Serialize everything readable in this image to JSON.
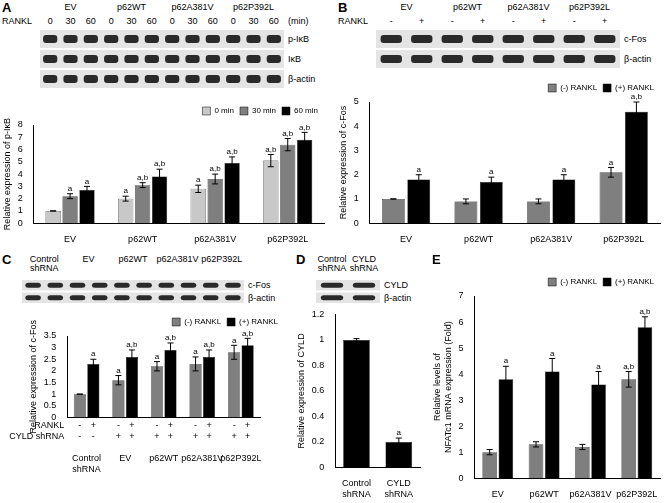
{
  "chart_data": [
    {
      "panel": "A",
      "type": "bar",
      "blot": {
        "groups": [
          "EV",
          "p62WT",
          "p62A381V",
          "p62P392L"
        ],
        "header": "RANKL",
        "lane_labels": [
          "0",
          "30",
          "60",
          "0",
          "30",
          "60",
          "0",
          "30",
          "60",
          "0",
          "30",
          "60"
        ],
        "unit": "(min)",
        "rows": [
          "p-IκB",
          "IκB",
          "β-actin"
        ]
      },
      "y_label": "Relative expression of p-IκB",
      "categories": [
        "EV",
        "p62WT",
        "p62A381V",
        "p62P392L"
      ],
      "series": [
        {
          "name": "0 min",
          "color": "#c8c8c8",
          "values": [
            1.0,
            2.0,
            2.8,
            5.1
          ],
          "errors": [
            0.0,
            0.2,
            0.3,
            0.5
          ],
          "significance": [
            null,
            "a",
            "a",
            "a,b"
          ]
        },
        {
          "name": "30 min",
          "color": "#7f7f7f",
          "values": [
            2.2,
            3.1,
            3.6,
            6.4
          ],
          "errors": [
            0.2,
            0.2,
            0.4,
            0.5
          ],
          "significance": [
            "a",
            "a,b",
            "a,b",
            "a,b"
          ]
        },
        {
          "name": "60 min",
          "color": "#000000",
          "values": [
            2.7,
            3.8,
            4.9,
            6.8
          ],
          "errors": [
            0.3,
            0.6,
            0.5,
            0.6
          ],
          "significance": [
            "a",
            "a,b",
            "a,b",
            "a,b"
          ]
        }
      ],
      "ylim": [
        0,
        8
      ],
      "yticks": [
        0,
        1,
        2,
        3,
        4,
        5,
        6,
        7,
        8
      ],
      "grid": false,
      "legend": "top"
    },
    {
      "panel": "B",
      "type": "bar",
      "blot": {
        "groups": [
          "EV",
          "p62WT",
          "p62A381V",
          "p62P392L"
        ],
        "header": "RANKL",
        "lane_labels": [
          "-",
          "+",
          "-",
          "+",
          "-",
          "+",
          "-",
          "+"
        ],
        "rows": [
          "c-Fos",
          "β-actin"
        ]
      },
      "y_label": "Relative expression of c-Fos",
      "categories": [
        "EV",
        "p62WT",
        "p62A381V",
        "p62P392L"
      ],
      "series": [
        {
          "name": "(-) RANKL",
          "color": "#7f7f7f",
          "values": [
            1.0,
            0.9,
            0.9,
            2.1
          ],
          "errors": [
            0.0,
            0.1,
            0.1,
            0.2
          ],
          "significance": [
            null,
            null,
            null,
            "a"
          ]
        },
        {
          "name": "(+) RANKL",
          "color": "#000000",
          "values": [
            1.8,
            1.7,
            1.8,
            4.6
          ],
          "errors": [
            0.2,
            0.2,
            0.2,
            0.4
          ],
          "significance": [
            "a",
            "a",
            "a",
            "a,b"
          ]
        }
      ],
      "ylim": [
        0,
        5
      ],
      "yticks": [
        0,
        1,
        2,
        3,
        4,
        5
      ],
      "grid": false,
      "legend": "top"
    },
    {
      "panel": "C",
      "type": "bar",
      "blot": {
        "groups": [
          "Control shRNA",
          "EV",
          "p62WT",
          "p62A381V",
          "p62P392L"
        ],
        "rows": [
          "c-Fos",
          "β-actin"
        ]
      },
      "y_label": "Relative expression of c-Fos",
      "categories": [
        "Control shRNA",
        "EV",
        "p62WT",
        "p62A381V",
        "p62P392L"
      ],
      "condition_rows": [
        {
          "label": "RANKL",
          "marks": [
            "-",
            "+",
            "-",
            "+",
            "-",
            "+",
            "-",
            "+",
            "-",
            "+"
          ]
        },
        {
          "label": "CYLD shRNA",
          "marks": [
            "-",
            "-",
            "+",
            "+",
            "+",
            "+",
            "+",
            "+",
            "+",
            "+"
          ]
        }
      ],
      "series": [
        {
          "name": "(-) RANKL",
          "color": "#7f7f7f",
          "values": [
            1.0,
            1.6,
            2.2,
            2.3,
            2.8
          ],
          "errors": [
            0.0,
            0.2,
            0.2,
            0.3,
            0.3
          ],
          "significance": [
            null,
            "a",
            "a",
            "a",
            "a"
          ]
        },
        {
          "name": "(+) RANKL",
          "color": "#000000",
          "values": [
            2.3,
            2.6,
            2.9,
            2.6,
            3.1
          ],
          "errors": [
            0.2,
            0.3,
            0.3,
            0.3,
            0.3
          ],
          "significance": [
            "a",
            "a,b",
            "a,b",
            "a,b",
            "a,b"
          ]
        }
      ],
      "ylim": [
        0,
        3.5
      ],
      "yticks": [
        0,
        0.5,
        1,
        1.5,
        2,
        2.5,
        3,
        3.5
      ],
      "grid": false,
      "legend": "top"
    },
    {
      "panel": "D",
      "type": "bar",
      "blot": {
        "groups": [
          "Control shRNA",
          "CYLD shRNA"
        ],
        "rows": [
          "CYLD",
          "β-actin"
        ]
      },
      "y_label": "Relative expression of CYLD",
      "categories": [
        "Control shRNA",
        "CYLD shRNA"
      ],
      "values": [
        1.0,
        0.2
      ],
      "errors": [
        0.01,
        0.03
      ],
      "significance": [
        null,
        "a"
      ],
      "color": "#000000",
      "ylim": [
        0,
        1.2
      ],
      "yticks": [
        0,
        0.2,
        0.4,
        0.6,
        0.8,
        1,
        1.2
      ],
      "grid": false
    },
    {
      "panel": "E",
      "type": "bar",
      "y_label": "Relative levels of NFATc1 mRNA expression (Fold)",
      "categories": [
        "EV",
        "p62WT",
        "p62A381V",
        "p62P392L"
      ],
      "series": [
        {
          "name": "(-) RANKL",
          "color": "#7f7f7f",
          "values": [
            1.0,
            1.3,
            1.2,
            3.8
          ],
          "errors": [
            0.1,
            0.1,
            0.1,
            0.3
          ],
          "significance": [
            null,
            null,
            null,
            "a,b"
          ]
        },
        {
          "name": "(+) RANKL",
          "color": "#000000",
          "values": [
            3.8,
            4.1,
            3.6,
            5.8
          ],
          "errors": [
            0.5,
            0.5,
            0.5,
            0.4
          ],
          "significance": [
            "a",
            "a",
            "a",
            "a,b"
          ]
        }
      ],
      "ylim": [
        0,
        7
      ],
      "yticks": [
        0,
        1,
        2,
        3,
        4,
        5,
        6,
        7
      ],
      "grid": false,
      "legend": "top"
    }
  ]
}
